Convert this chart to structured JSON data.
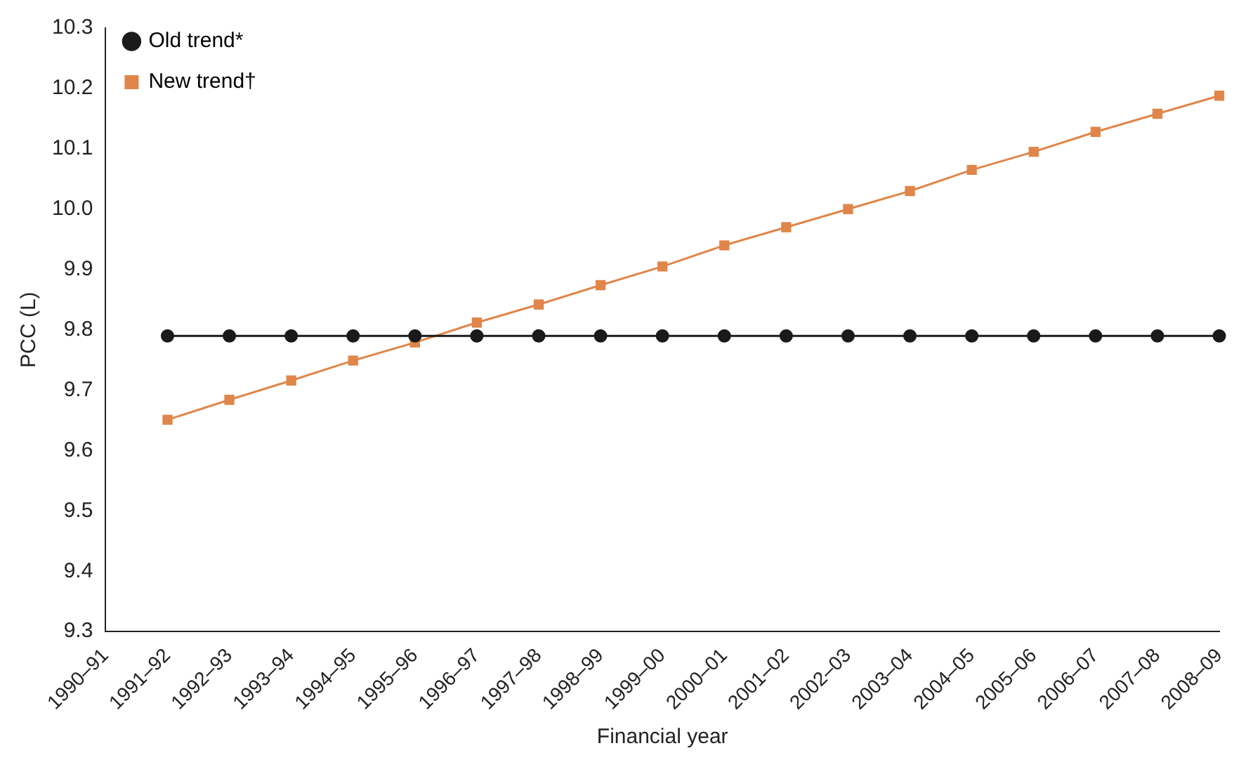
{
  "chart_data": {
    "type": "line",
    "xlabel": "Financial year",
    "ylabel": "PCC (L)",
    "categories": [
      "1990–91",
      "1991–92",
      "1992–93",
      "1993–94",
      "1994–95",
      "1995–96",
      "1996–97",
      "1997–98",
      "1998–99",
      "1999–00",
      "2000–01",
      "2001–02",
      "2002–03",
      "2003–04",
      "2004–05",
      "2005–06",
      "2006–07",
      "2007–08",
      "2008–09"
    ],
    "series": [
      {
        "name": "Old trend*",
        "color": "#1a1a1a",
        "marker": "circle",
        "values": [
          null,
          9.79,
          9.79,
          9.79,
          9.79,
          9.79,
          9.79,
          9.79,
          9.79,
          9.79,
          9.79,
          9.79,
          9.79,
          9.79,
          9.79,
          9.79,
          9.79,
          9.79,
          9.79
        ]
      },
      {
        "name": "New trend†",
        "color": "#e0864a",
        "marker": "square",
        "values": [
          null,
          9.651,
          9.684,
          9.716,
          9.749,
          9.779,
          9.812,
          9.842,
          9.874,
          9.905,
          9.94,
          9.97,
          10.0,
          10.03,
          10.065,
          10.095,
          10.128,
          10.158,
          10.188
        ]
      }
    ],
    "ylim": [
      9.3,
      10.3
    ],
    "yticks": [
      9.3,
      9.4,
      9.5,
      9.6,
      9.7,
      9.8,
      9.9,
      {
        "value": 10,
        "label": "10.0"
      },
      10.1,
      10.2,
      10.3
    ],
    "grid": false,
    "legend": "top left",
    "line_style": "solid"
  }
}
